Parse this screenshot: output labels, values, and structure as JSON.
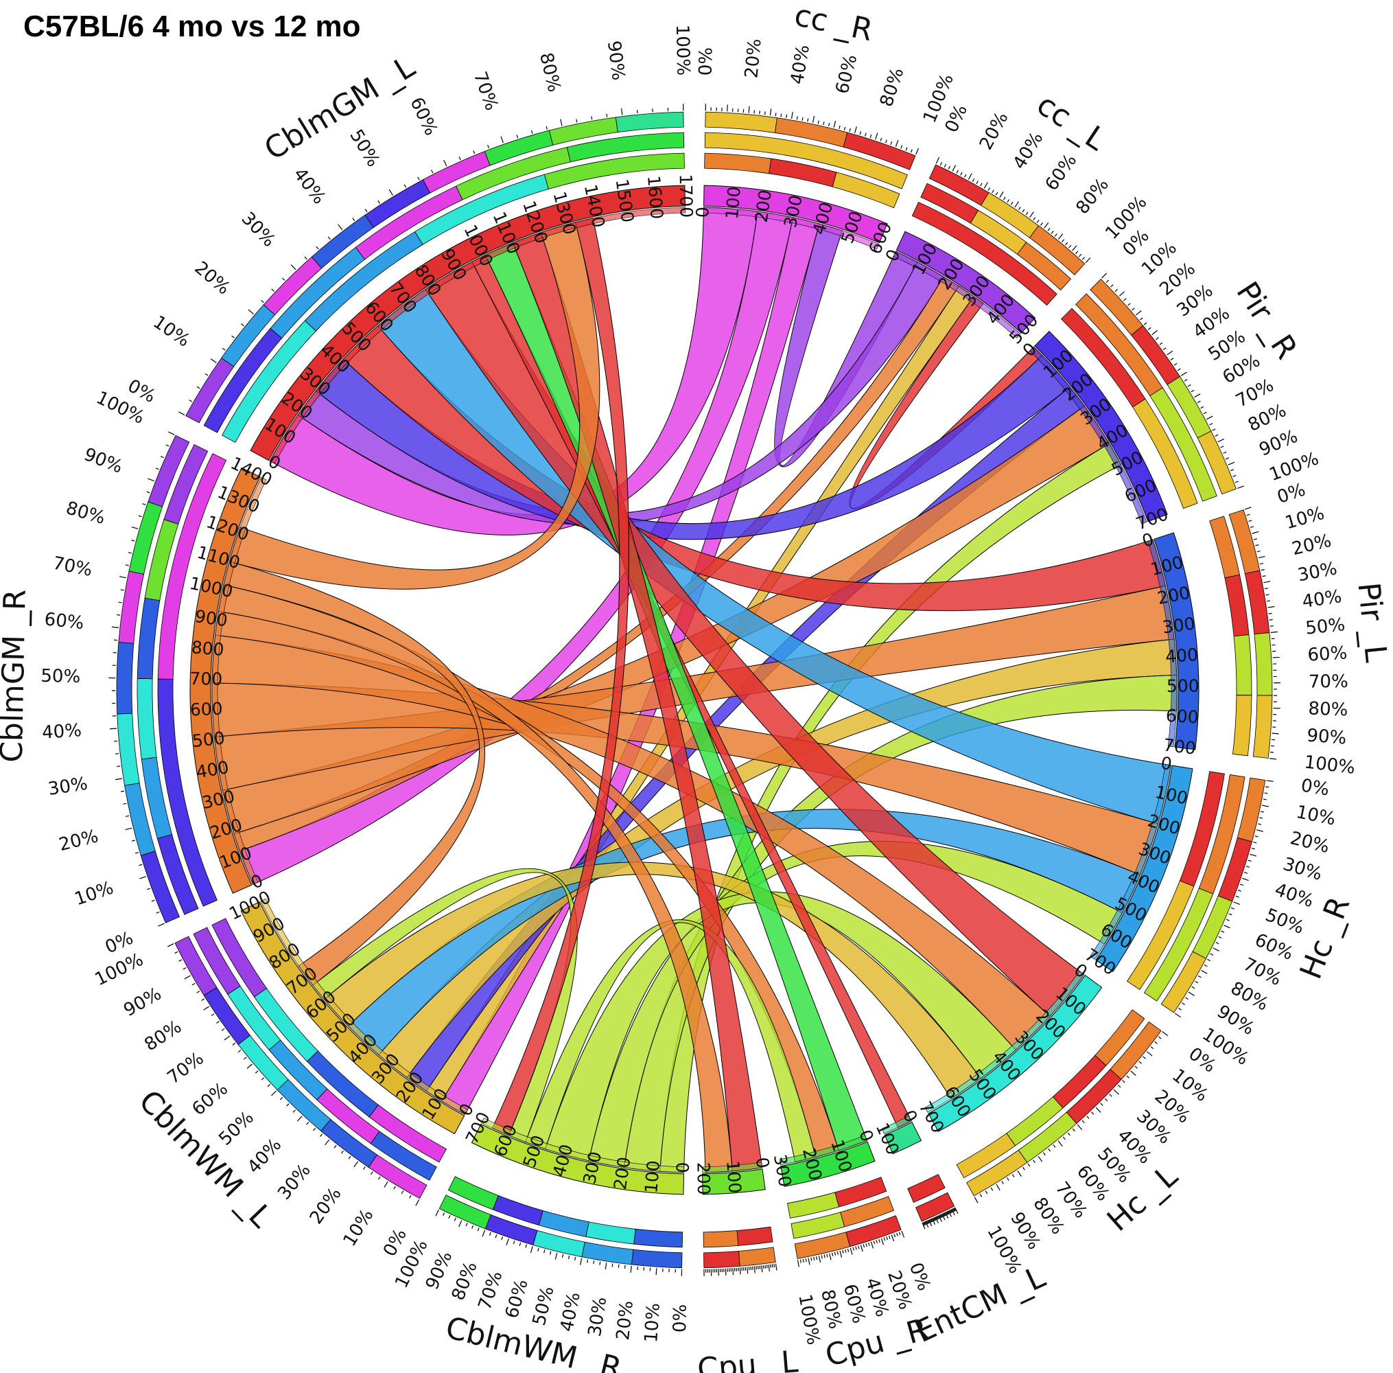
{
  "title": "C57BL/6 4 mo vs 12 mo",
  "chart_data": {
    "type": "chord",
    "pct_ticks": [
      "0%",
      "10%",
      "20%",
      "30%",
      "40%",
      "50%",
      "60%",
      "70%",
      "80%",
      "90%",
      "100%"
    ],
    "sectors": [
      {
        "name": "cc_R",
        "label": "cc _R",
        "max": 600,
        "color": "#e23ee6",
        "ticks": [
          0,
          100,
          200,
          300,
          400,
          500,
          600
        ],
        "pcts": [
          "0%",
          "20%",
          "40%",
          "60%",
          "80%",
          "100%"
        ],
        "ring1": [
          "#e8c030",
          "#e88030",
          "#e23030"
        ],
        "ring2": [
          "#e8c030"
        ],
        "ring3": [
          "#e88030",
          "#e23030",
          "#e8c030"
        ]
      },
      {
        "name": "cc_L",
        "label": "cc _L",
        "max": 500,
        "color": "#9b3fe6",
        "ticks": [
          0,
          100,
          200,
          300,
          400,
          500
        ],
        "pcts": [
          "0%",
          "20%",
          "40%",
          "60%",
          "80%",
          "100%"
        ],
        "ring1": [
          "#e23030",
          "#e8c030",
          "#e88030"
        ],
        "ring2": [
          "#e23030",
          "#e8c030",
          "#e88030"
        ],
        "ring3": [
          "#e23030"
        ]
      },
      {
        "name": "Pir_R",
        "label": "Pir _R",
        "max": 700,
        "color": "#4b35e6",
        "ticks": [
          0,
          100,
          200,
          300,
          400,
          500,
          600,
          700
        ],
        "pcts": [
          "0%",
          "10%",
          "20%",
          "30%",
          "40%",
          "50%",
          "60%",
          "70%",
          "80%",
          "90%",
          "100%"
        ],
        "ring1": [
          "#e88030",
          "#e23030",
          "#b8e030",
          "#e8c030"
        ],
        "ring2": [
          "#e88030",
          "#b8e030"
        ],
        "ring3": [
          "#e23030",
          "#e8c030"
        ]
      },
      {
        "name": "Pir_L",
        "label": "Pir _L",
        "max": 700,
        "color": "#2f5fe0",
        "ticks": [
          0,
          100,
          200,
          300,
          400,
          500,
          600,
          700
        ],
        "pcts": [
          "0%",
          "10%",
          "20%",
          "30%",
          "40%",
          "50%",
          "60%",
          "70%",
          "80%",
          "90%",
          "100%"
        ],
        "ring1": [
          "#e88030",
          "#e23030",
          "#b8e030",
          "#e8c030"
        ],
        "ring2": [
          "#e88030",
          "#e23030",
          "#b8e030",
          "#e8c030"
        ],
        "ring3": []
      },
      {
        "name": "Hc_R",
        "label": "Hc _R",
        "max": 700,
        "color": "#2fa0e6",
        "ticks": [
          0,
          100,
          200,
          300,
          400,
          500,
          600,
          700
        ],
        "pcts": [
          "0%",
          "10%",
          "20%",
          "30%",
          "40%",
          "50%",
          "60%",
          "70%",
          "80%",
          "90%",
          "100%"
        ],
        "ring1": [
          "#e88030",
          "#e23030",
          "#b8e030",
          "#e8c030"
        ],
        "ring2": [
          "#e88030",
          "#b8e030"
        ],
        "ring3": [
          "#e23030",
          "#e8c030"
        ]
      },
      {
        "name": "Hc_L",
        "label": "Hc _L",
        "max": 700,
        "color": "#2fe6d6",
        "ticks": [
          0,
          100,
          200,
          300,
          400,
          500,
          600,
          700
        ],
        "pcts": [
          "0%",
          "10%",
          "20%",
          "30%",
          "40%",
          "50%",
          "60%",
          "70%",
          "80%",
          "90%",
          "100%"
        ],
        "ring1": [
          "#e88030",
          "#e23030",
          "#b8e030",
          "#e8c030"
        ],
        "ring2": [
          "#e88030",
          "#e23030",
          "#b8e030",
          "#e8c030"
        ],
        "ring3": []
      },
      {
        "name": "EntCM_L",
        "label": "EntCM _L",
        "max": 100,
        "color": "#2fe090",
        "ticks": [
          0,
          100
        ],
        "pcts": [],
        "ring1": [
          "#e23030"
        ],
        "ring2": [
          "#e23030"
        ],
        "ring3": []
      },
      {
        "name": "Cpu_R",
        "label": "Cpu _R",
        "max": 300,
        "color": "#2fe040",
        "ticks": [
          0,
          100,
          200,
          300
        ],
        "pcts": [
          "0%",
          "20%",
          "40%",
          "60%",
          "80%",
          "100%"
        ],
        "ring1": [
          "#e23030",
          "#e88030"
        ],
        "ring2": [
          "#e88030",
          "#b8e030"
        ],
        "ring3": [
          "#e23030",
          "#b8e030"
        ]
      },
      {
        "name": "Cpu_L",
        "label": "Cpu _L",
        "max": 200,
        "color": "#6ee030",
        "ticks": [
          0,
          100,
          200
        ],
        "pcts": [],
        "ring1": [
          "#e88030",
          "#e23030"
        ],
        "ring2": [
          "#e23030",
          "#e88030"
        ],
        "ring3": []
      },
      {
        "name": "CblmWM_R",
        "label": "CblmWM _R",
        "max": 700,
        "color": "#b8e030",
        "ticks": [
          0,
          100,
          200,
          300,
          400,
          500,
          600,
          700
        ],
        "pcts": [
          "0%",
          "10%",
          "20%",
          "30%",
          "40%",
          "50%",
          "60%",
          "70%",
          "80%",
          "90%",
          "100%"
        ],
        "ring1": [
          "#2f5fe0",
          "#2fa0e6",
          "#2fe6d6",
          "#4b35e6",
          "#2fe040"
        ],
        "ring2": [
          "#2f5fe0",
          "#2fe6d6",
          "#2fa0e6",
          "#4b35e6",
          "#2fe040"
        ],
        "ring3": []
      },
      {
        "name": "CblmWM_L",
        "label": "CblmWM _L",
        "max": 1000,
        "color": "#e0b830",
        "ticks": [
          0,
          100,
          200,
          300,
          400,
          500,
          600,
          700,
          800,
          900,
          1000
        ],
        "pcts": [
          "0%",
          "10%",
          "20%",
          "30%",
          "40%",
          "50%",
          "60%",
          "70%",
          "80%",
          "90%",
          "100%"
        ],
        "ring1": [
          "#e23ee6",
          "#2f5fe0",
          "#2fa0e6",
          "#2fe6d6",
          "#4b35e6",
          "#9b3fe6"
        ],
        "ring2": [
          "#2f5fe0",
          "#e23ee6",
          "#2fa0e6",
          "#2fe6d6",
          "#9b3fe6"
        ],
        "ring3": [
          "#e23ee6",
          "#2f5fe0",
          "#2fe6d6",
          "#9b3fe6"
        ]
      },
      {
        "name": "CblmGM_R",
        "label": "CblmGM _R",
        "max": 1400,
        "color": "#e87a30",
        "ticks": [
          0,
          100,
          200,
          300,
          400,
          500,
          600,
          700,
          800,
          900,
          1000,
          1100,
          1200,
          1300,
          1400
        ],
        "pcts": [
          "0%",
          "10%",
          "20%",
          "30%",
          "40%",
          "50%",
          "60%",
          "70%",
          "80%",
          "90%",
          "100%"
        ],
        "ring1": [
          "#4b35e6",
          "#2fa0e6",
          "#2fe6d6",
          "#2f5fe0",
          "#e23ee6",
          "#2fe040",
          "#9b3fe6"
        ],
        "ring2": [
          "#4b35e6",
          "#2fa0e6",
          "#2fe6d6",
          "#2f5fe0",
          "#6ee030",
          "#9b3fe6"
        ],
        "ring3": [
          "#4b35e6",
          "#e23ee6"
        ]
      },
      {
        "name": "CblmGM_L",
        "label": "CblmGM _L",
        "max": 1700,
        "color": "#e23030",
        "ticks": [
          0,
          100,
          200,
          300,
          400,
          500,
          600,
          700,
          800,
          900,
          1000,
          1100,
          1200,
          1300,
          1400,
          1500,
          1600,
          1700
        ],
        "pcts": [
          "0%",
          "10%",
          "20%",
          "30%",
          "40%",
          "50%",
          "60%",
          "70%",
          "80%",
          "90%",
          "100%"
        ],
        "ring1": [
          "#9b3fe6",
          "#2fa0e6",
          "#e23ee6",
          "#2f5fe0",
          "#4b35e6",
          "#e23ee6",
          "#2fe040",
          "#6ee030",
          "#2fe090"
        ],
        "ring2": [
          "#4b35e6",
          "#2fa0e6",
          "#e23ee6",
          "#6ee030",
          "#2fe040"
        ],
        "ring3": [
          "#2fe6d6",
          "#2fa0e6",
          "#2fe6d6",
          "#6ee030"
        ]
      }
    ],
    "links": [
      {
        "from": "cc_R",
        "to": "CblmGM_L",
        "value": 180,
        "color": "#e23ee6"
      },
      {
        "from": "cc_R",
        "to": "CblmGM_R",
        "value": 120,
        "color": "#e23ee6"
      },
      {
        "from": "cc_R",
        "to": "CblmWM_L",
        "value": 90,
        "color": "#e23ee6"
      },
      {
        "from": "cc_R",
        "to": "cc_L",
        "value": 80,
        "color": "#9b3fe6"
      },
      {
        "from": "cc_L",
        "to": "CblmGM_L",
        "value": 100,
        "color": "#9b3fe6"
      },
      {
        "from": "cc_L",
        "to": "CblmGM_R",
        "value": 60,
        "color": "#e87a30"
      },
      {
        "from": "cc_L",
        "to": "CblmWM_L",
        "value": 60,
        "color": "#e0b830"
      },
      {
        "from": "cc_L",
        "to": "Pir_R",
        "value": 40,
        "color": "#e23030"
      },
      {
        "from": "Pir_R",
        "to": "CblmGM_L",
        "value": 140,
        "color": "#4b35e6"
      },
      {
        "from": "Pir_R",
        "to": "CblmWM_L",
        "value": 80,
        "color": "#4b35e6"
      },
      {
        "from": "Pir_R",
        "to": "CblmGM_R",
        "value": 150,
        "color": "#e87a30"
      },
      {
        "from": "Pir_R",
        "to": "CblmWM_R",
        "value": 80,
        "color": "#b8e030"
      },
      {
        "from": "Pir_L",
        "to": "CblmGM_L",
        "value": 160,
        "color": "#e23030"
      },
      {
        "from": "Pir_L",
        "to": "CblmGM_R",
        "value": 180,
        "color": "#e87a30"
      },
      {
        "from": "Pir_L",
        "to": "CblmWM_L",
        "value": 120,
        "color": "#e0b830"
      },
      {
        "from": "Pir_L",
        "to": "CblmWM_R",
        "value": 120,
        "color": "#b8e030"
      },
      {
        "from": "Hc_R",
        "to": "CblmGM_L",
        "value": 200,
        "color": "#2fa0e6"
      },
      {
        "from": "Hc_R",
        "to": "CblmGM_R",
        "value": 180,
        "color": "#e87a30"
      },
      {
        "from": "Hc_R",
        "to": "CblmWM_L",
        "value": 140,
        "color": "#2fa0e6"
      },
      {
        "from": "Hc_R",
        "to": "CblmWM_R",
        "value": 120,
        "color": "#b8e030"
      },
      {
        "from": "Hc_L",
        "to": "CblmGM_L",
        "value": 180,
        "color": "#e23030"
      },
      {
        "from": "Hc_L",
        "to": "CblmGM_R",
        "value": 160,
        "color": "#e87a30"
      },
      {
        "from": "Hc_L",
        "to": "CblmWM_R",
        "value": 150,
        "color": "#b8e030"
      },
      {
        "from": "Hc_L",
        "to": "CblmWM_L",
        "value": 120,
        "color": "#e0b830"
      },
      {
        "from": "EntCM_L",
        "to": "CblmGM_L",
        "value": 50,
        "color": "#e23030"
      },
      {
        "from": "Cpu_R",
        "to": "CblmGM_L",
        "value": 100,
        "color": "#2fe040"
      },
      {
        "from": "Cpu_R",
        "to": "CblmGM_R",
        "value": 80,
        "color": "#e87a30"
      },
      {
        "from": "Cpu_R",
        "to": "CblmWM_R",
        "value": 70,
        "color": "#b8e030"
      },
      {
        "from": "Cpu_L",
        "to": "CblmGM_L",
        "value": 100,
        "color": "#e23030"
      },
      {
        "from": "Cpu_L",
        "to": "CblmGM_R",
        "value": 90,
        "color": "#e87a30"
      },
      {
        "from": "CblmWM_R",
        "to": "CblmWM_L",
        "value": 60,
        "color": "#b8e030"
      },
      {
        "from": "CblmWM_L",
        "to": "CblmGM_R",
        "value": 80,
        "color": "#e87a30"
      },
      {
        "from": "CblmGM_R",
        "to": "CblmGM_L",
        "value": 120,
        "color": "#e87a30"
      },
      {
        "from": "CblmWM_R",
        "to": "CblmGM_L",
        "value": 60,
        "color": "#e23030"
      }
    ]
  }
}
